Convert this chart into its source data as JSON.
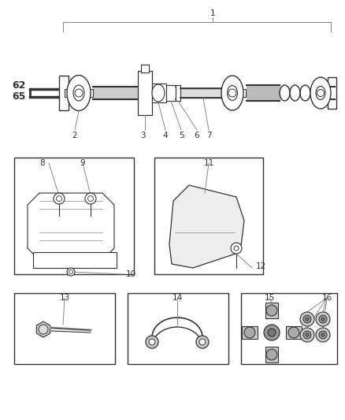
{
  "bg_color": "#ffffff",
  "line_color": "#333333",
  "gray": "#888888",
  "fig_w": 4.38,
  "fig_h": 5.33,
  "dpi": 100,
  "bracket_label": "1",
  "label62": "62",
  "label65": "65",
  "shaft_labels": [
    "2",
    "3",
    "4",
    "5",
    "6",
    "7"
  ],
  "box1_labels": [
    "8",
    "9",
    "10"
  ],
  "box2_labels": [
    "11",
    "12"
  ],
  "box3_labels": [
    "13"
  ],
  "box4_labels": [
    "14"
  ],
  "box5_labels": [
    "15",
    "16"
  ]
}
